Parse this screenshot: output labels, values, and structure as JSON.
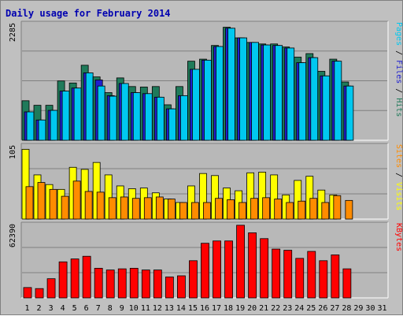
{
  "chart_data": {
    "type": "bar",
    "title": "Daily usage for February 2014",
    "categories": [
      "1",
      "2",
      "3",
      "4",
      "5",
      "6",
      "7",
      "8",
      "9",
      "10",
      "11",
      "12",
      "13",
      "14",
      "15",
      "16",
      "17",
      "18",
      "19",
      "20",
      "21",
      "22",
      "23",
      "24",
      "25",
      "26",
      "27",
      "28",
      "29",
      "30",
      "31"
    ],
    "weekend_days": [
      "1",
      "2",
      "8",
      "9",
      "15",
      "16",
      "22",
      "23",
      "29",
      "30"
    ],
    "colors": {
      "background": "#c0c0c0",
      "plot_bg": "#b8b8b8",
      "grid": "#808080",
      "title": "#0000b0",
      "hits": "#1f7a5a",
      "files": "#2020d0",
      "pages": "#00c8f0",
      "visits": "#ffff00",
      "sites": "#ff8c00",
      "kbytes": "#ff0000",
      "weekend_label": "#00804b",
      "weekday_label": "#000000"
    },
    "panels": [
      {
        "name": "hits-files-pages",
        "ymax_label": "2285",
        "ymax": 2285,
        "axis_label_parts": [
          {
            "text": "Pages",
            "color": "#00c8f0"
          },
          {
            "text": " / ",
            "color": "#000000"
          },
          {
            "text": "Files",
            "color": "#2020d0"
          },
          {
            "text": " / ",
            "color": "#000000"
          },
          {
            "text": "Hits",
            "color": "#1f7a5a"
          }
        ],
        "series": [
          {
            "name": "Hits",
            "color": "#1f7a5a",
            "values": [
              780,
              690,
              690,
              1170,
              1130,
              1480,
              1250,
              940,
              1230,
              1060,
              1050,
              1060,
              700,
              1060,
              1560,
              1600,
              1870,
              2230,
              2020,
              1930,
              1900,
              1900,
              1840,
              1640,
              1710,
              1360,
              1600,
              1150,
              0,
              0,
              0
            ]
          },
          {
            "name": "Files",
            "color": "#2020d0",
            "values": [
              560,
              400,
              590,
              970,
              1030,
              1330,
              1190,
              880,
              1120,
              940,
              920,
              850,
              620,
              880,
              1400,
              1580,
              1850,
              2210,
              2020,
              1930,
              1880,
              1870,
              1820,
              1530,
              1630,
              1270,
              1560,
              1070,
              0,
              0,
              0
            ]
          },
          {
            "name": "Pages",
            "color": "#00c8f0",
            "values": [
              560,
              400,
              590,
              970,
              1030,
              1330,
              1070,
              870,
              1120,
              940,
              920,
              850,
              620,
              880,
              1400,
              1580,
              1850,
              2210,
              2020,
              1930,
              1880,
              1870,
              1820,
              1530,
              1630,
              1270,
              1560,
              1070,
              0,
              0,
              0
            ]
          }
        ]
      },
      {
        "name": "visits-sites",
        "ymax_label": "105",
        "ymax": 105,
        "axis_label_parts": [
          {
            "text": "Sites",
            "color": "#ff8c00"
          },
          {
            "text": " / ",
            "color": "#000000"
          },
          {
            "text": "Visits",
            "color": "#ffff00"
          }
        ],
        "series": [
          {
            "name": "Visits",
            "color": "#ffff00",
            "values": [
              101,
              64,
              50,
              43,
              75,
              72,
              82,
              64,
              48,
              44,
              45,
              38,
              29,
              24,
              48,
              66,
              63,
              45,
              41,
              67,
              68,
              64,
              35,
              56,
              62,
              42,
              35,
              0,
              0,
              0,
              0
            ]
          },
          {
            "name": "Sites",
            "color": "#ff8c00",
            "values": [
              47,
              53,
              43,
              33,
              55,
              40,
              39,
              31,
              32,
              30,
              31,
              32,
              29,
              24,
              24,
              24,
              30,
              28,
              24,
              30,
              31,
              29,
              24,
              26,
              30,
              24,
              34,
              27,
              0,
              0,
              0
            ]
          }
        ]
      },
      {
        "name": "kbytes",
        "ymax_label": "62390",
        "ymax": 62390,
        "axis_label_parts": [
          {
            "text": "KBytes",
            "color": "#ff0000"
          }
        ],
        "series": [
          {
            "name": "KBytes",
            "color": "#ff0000",
            "values": [
              8900,
              8000,
              16500,
              31000,
              33500,
              35800,
              25500,
              24000,
              25000,
              25500,
              24000,
              24000,
              18000,
              19000,
              32000,
              47000,
              49000,
              49000,
              62500,
              56000,
              51000,
              42000,
              41000,
              34000,
              40000,
              32000,
              37000,
              25000,
              0,
              0,
              0
            ]
          }
        ]
      }
    ]
  }
}
